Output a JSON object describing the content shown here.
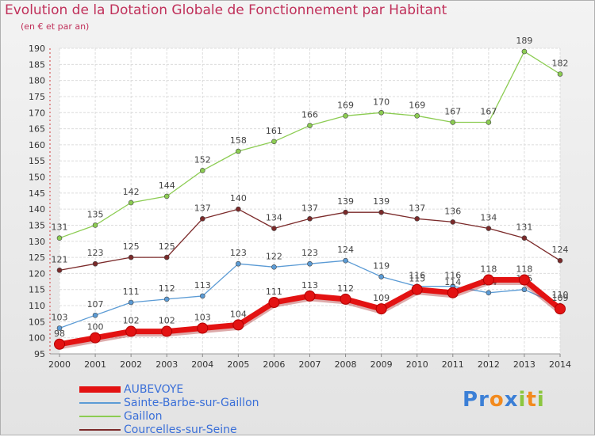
{
  "title": "Evolution de la Dotation Globale de Fonctionnement par Habitant",
  "subtitle": "(en € et par an)",
  "logo": {
    "text": "Proxiti",
    "letters": [
      "P",
      "r",
      "o",
      "x",
      "i",
      "t",
      "i"
    ],
    "colors": [
      "#3b7fd6",
      "#3b7fd6",
      "#f28a1e",
      "#3b7fd6",
      "#8cc63f",
      "#f28a1e",
      "#8cc63f"
    ]
  },
  "chart_data": {
    "type": "line",
    "title": "Evolution de la Dotation Globale de Fonctionnement par Habitant",
    "subtitle": "(en € et par an)",
    "x": [
      "2000",
      "2001",
      "2002",
      "2003",
      "2004",
      "2005",
      "2006",
      "2007",
      "2008",
      "2009",
      "2010",
      "2011",
      "2012",
      "2013",
      "2014"
    ],
    "ylim": [
      95,
      190
    ],
    "yticks": [
      95,
      100,
      105,
      110,
      115,
      120,
      125,
      130,
      135,
      140,
      145,
      150,
      155,
      160,
      165,
      170,
      175,
      180,
      185,
      190
    ],
    "grid": true,
    "legend_position": "bottom-left",
    "series": [
      {
        "name": "AUBEVOYE",
        "color": "#e31212",
        "values": [
          98,
          100,
          102,
          102,
          103,
          104,
          111,
          113,
          112,
          109,
          115,
          114,
          118,
          118,
          109
        ],
        "labels": [
          "98",
          "100",
          "102",
          "102",
          "103",
          "104",
          "111",
          "113",
          "112",
          "109",
          "115",
          "114",
          "118",
          "118",
          "109"
        ]
      },
      {
        "name": "Sainte-Barbe-sur-Gaillon",
        "color": "#5b9bd5",
        "values": [
          103,
          107,
          111,
          112,
          113,
          123,
          122,
          123,
          124,
          119,
          116,
          116,
          114,
          115,
          110
        ],
        "labels": [
          "103",
          "107",
          "111",
          "112",
          "113",
          "123",
          "122",
          "123",
          "124",
          "119",
          "116",
          "116",
          "114",
          "115",
          "110"
        ]
      },
      {
        "name": "Gaillon",
        "color": "#8ccc52",
        "values": [
          131,
          135,
          142,
          144,
          152,
          158,
          161,
          166,
          169,
          170,
          169,
          167,
          167,
          189,
          182
        ],
        "labels": [
          "131",
          "135",
          "142",
          "144",
          "152",
          "158",
          "161",
          "166",
          "169",
          "170",
          "169",
          "167",
          "167",
          "189",
          "182"
        ]
      },
      {
        "name": "Courcelles-sur-Seine",
        "color": "#7b2a2a",
        "values": [
          121,
          123,
          125,
          125,
          137,
          140,
          134,
          137,
          139,
          139,
          137,
          136,
          134,
          131,
          124
        ],
        "labels": [
          "121",
          "123",
          "125",
          "125",
          "137",
          "140",
          "134",
          "137",
          "139",
          "139",
          "137",
          "136",
          "134",
          "131",
          "124"
        ]
      }
    ]
  }
}
